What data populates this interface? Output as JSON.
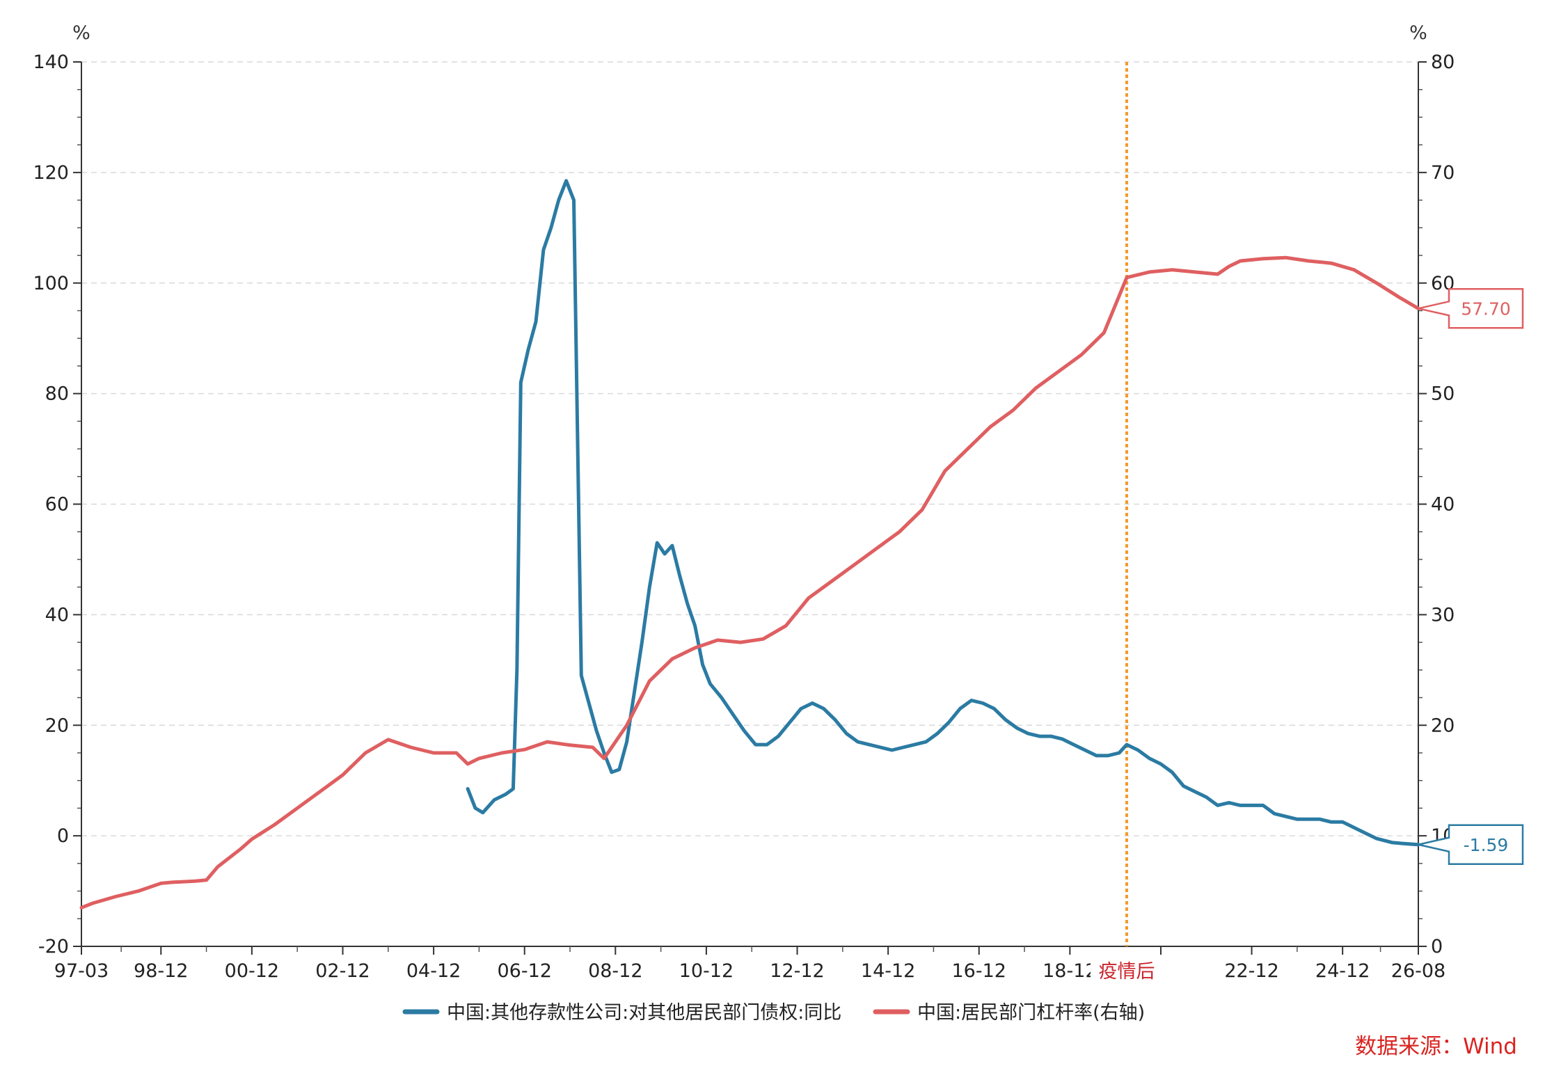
{
  "chart_data": {
    "type": "line",
    "left_unit": "%",
    "right_unit": "%",
    "left_axis": {
      "min": -20,
      "max": 140,
      "ticks": [
        -20,
        0,
        20,
        40,
        60,
        80,
        100,
        120,
        140
      ]
    },
    "right_axis": {
      "min": 0,
      "max": 80,
      "ticks": [
        0,
        10,
        20,
        30,
        40,
        50,
        60,
        70,
        80
      ]
    },
    "x_axis": {
      "start": "1997-03",
      "end": "2026-08",
      "labels": [
        {
          "date": "1997-03",
          "text": "97-03"
        },
        {
          "date": "1998-12",
          "text": "98-12"
        },
        {
          "date": "2000-12",
          "text": "00-12"
        },
        {
          "date": "2002-12",
          "text": "02-12"
        },
        {
          "date": "2004-12",
          "text": "04-12"
        },
        {
          "date": "2006-12",
          "text": "06-12"
        },
        {
          "date": "2008-12",
          "text": "08-12"
        },
        {
          "date": "2010-12",
          "text": "10-12"
        },
        {
          "date": "2012-12",
          "text": "12-12"
        },
        {
          "date": "2014-12",
          "text": "14-12"
        },
        {
          "date": "2016-12",
          "text": "16-12"
        },
        {
          "date": "2018-12",
          "text": "18-12"
        },
        {
          "date": "2022-12",
          "text": "22-12"
        },
        {
          "date": "2024-12",
          "text": "24-12"
        },
        {
          "date": "2026-08",
          "text": "26-08"
        }
      ]
    },
    "grid": "horizontal-dashed",
    "legend_position": "bottom",
    "marker": {
      "date": "2020-03",
      "label": "疫情后",
      "color": "#f39a2d"
    },
    "series": [
      {
        "name": "中国:其他存款性公司:对其他居民部门债权:同比",
        "axis": "left",
        "color": "#2b7ba3",
        "end_label": "-1.59",
        "points": [
          [
            "2005-09",
            8.5
          ],
          [
            "2005-11",
            5.0
          ],
          [
            "2006-01",
            4.2
          ],
          [
            "2006-04",
            6.5
          ],
          [
            "2006-07",
            7.5
          ],
          [
            "2006-09",
            8.5
          ],
          [
            "2006-10",
            30
          ],
          [
            "2006-11",
            82
          ],
          [
            "2007-01",
            88
          ],
          [
            "2007-03",
            93
          ],
          [
            "2007-05",
            106
          ],
          [
            "2007-07",
            110
          ],
          [
            "2007-09",
            115
          ],
          [
            "2007-11",
            118.5
          ],
          [
            "2008-01",
            115
          ],
          [
            "2008-03",
            29
          ],
          [
            "2008-05",
            24
          ],
          [
            "2008-07",
            19
          ],
          [
            "2008-09",
            15
          ],
          [
            "2008-11",
            11.5
          ],
          [
            "2009-01",
            12
          ],
          [
            "2009-03",
            17
          ],
          [
            "2009-05",
            26
          ],
          [
            "2009-07",
            35
          ],
          [
            "2009-09",
            45
          ],
          [
            "2009-11",
            53
          ],
          [
            "2010-01",
            51
          ],
          [
            "2010-03",
            52.5
          ],
          [
            "2010-05",
            47
          ],
          [
            "2010-07",
            42
          ],
          [
            "2010-09",
            38
          ],
          [
            "2010-11",
            31
          ],
          [
            "2011-01",
            27.5
          ],
          [
            "2011-04",
            25
          ],
          [
            "2011-07",
            22
          ],
          [
            "2011-10",
            19
          ],
          [
            "2012-01",
            16.5
          ],
          [
            "2012-04",
            16.5
          ],
          [
            "2012-07",
            18
          ],
          [
            "2012-10",
            20.5
          ],
          [
            "2013-01",
            23
          ],
          [
            "2013-04",
            24
          ],
          [
            "2013-07",
            23
          ],
          [
            "2013-10",
            21
          ],
          [
            "2014-01",
            18.5
          ],
          [
            "2014-04",
            17
          ],
          [
            "2014-07",
            16.5
          ],
          [
            "2014-10",
            16
          ],
          [
            "2015-01",
            15.5
          ],
          [
            "2015-04",
            16
          ],
          [
            "2015-07",
            16.5
          ],
          [
            "2015-10",
            17
          ],
          [
            "2016-01",
            18.5
          ],
          [
            "2016-04",
            20.5
          ],
          [
            "2016-07",
            23
          ],
          [
            "2016-10",
            24.5
          ],
          [
            "2017-01",
            24
          ],
          [
            "2017-04",
            23
          ],
          [
            "2017-07",
            21
          ],
          [
            "2017-10",
            19.5
          ],
          [
            "2018-01",
            18.5
          ],
          [
            "2018-04",
            18
          ],
          [
            "2018-07",
            18
          ],
          [
            "2018-10",
            17.5
          ],
          [
            "2019-01",
            16.5
          ],
          [
            "2019-04",
            15.5
          ],
          [
            "2019-07",
            14.5
          ],
          [
            "2019-10",
            14.5
          ],
          [
            "2020-01",
            15
          ],
          [
            "2020-03",
            16.5
          ],
          [
            "2020-06",
            15.5
          ],
          [
            "2020-09",
            14
          ],
          [
            "2020-12",
            13
          ],
          [
            "2021-03",
            11.5
          ],
          [
            "2021-06",
            9
          ],
          [
            "2021-09",
            8
          ],
          [
            "2021-12",
            7
          ],
          [
            "2022-03",
            5.5
          ],
          [
            "2022-06",
            6
          ],
          [
            "2022-09",
            5.5
          ],
          [
            "2022-12",
            5.5
          ],
          [
            "2023-03",
            5.5
          ],
          [
            "2023-06",
            4
          ],
          [
            "2023-09",
            3.5
          ],
          [
            "2023-12",
            3
          ],
          [
            "2024-03",
            3
          ],
          [
            "2024-06",
            3
          ],
          [
            "2024-09",
            2.5
          ],
          [
            "2024-12",
            2.5
          ],
          [
            "2025-03",
            1.5
          ],
          [
            "2025-06",
            0.5
          ],
          [
            "2025-09",
            -0.5
          ],
          [
            "2026-01",
            -1.2
          ],
          [
            "2026-04",
            -1.4
          ],
          [
            "2026-08",
            -1.59
          ]
        ]
      },
      {
        "name": "中国:居民部门杠杆率(右轴)",
        "axis": "right",
        "color": "#df5f61",
        "end_label": "57.70",
        "points": [
          [
            "1997-03",
            3.5
          ],
          [
            "1997-06",
            3.9
          ],
          [
            "1997-12",
            4.5
          ],
          [
            "1998-06",
            5.0
          ],
          [
            "1998-12",
            5.7
          ],
          [
            "1999-03",
            5.8
          ],
          [
            "1999-09",
            5.9
          ],
          [
            "1999-12",
            6.0
          ],
          [
            "2000-03",
            7.2
          ],
          [
            "2000-09",
            8.8
          ],
          [
            "2000-12",
            9.7
          ],
          [
            "2001-06",
            11.0
          ],
          [
            "2001-12",
            12.5
          ],
          [
            "2002-06",
            14.0
          ],
          [
            "2002-12",
            15.5
          ],
          [
            "2003-06",
            17.5
          ],
          [
            "2003-12",
            18.7
          ],
          [
            "2004-06",
            18.0
          ],
          [
            "2004-12",
            17.5
          ],
          [
            "2005-06",
            17.5
          ],
          [
            "2005-09",
            16.5
          ],
          [
            "2005-12",
            17.0
          ],
          [
            "2006-06",
            17.5
          ],
          [
            "2006-12",
            17.8
          ],
          [
            "2007-06",
            18.5
          ],
          [
            "2007-12",
            18.2
          ],
          [
            "2008-06",
            18.0
          ],
          [
            "2008-09",
            17.0
          ],
          [
            "2009-03",
            20.0
          ],
          [
            "2009-09",
            24.0
          ],
          [
            "2010-03",
            26.0
          ],
          [
            "2010-09",
            27.0
          ],
          [
            "2011-03",
            27.7
          ],
          [
            "2011-09",
            27.5
          ],
          [
            "2012-03",
            27.8
          ],
          [
            "2012-09",
            29.0
          ],
          [
            "2013-03",
            31.5
          ],
          [
            "2013-09",
            33.0
          ],
          [
            "2014-03",
            34.5
          ],
          [
            "2014-09",
            36.0
          ],
          [
            "2015-03",
            37.5
          ],
          [
            "2015-09",
            39.5
          ],
          [
            "2016-03",
            43.0
          ],
          [
            "2016-09",
            45.0
          ],
          [
            "2017-03",
            47.0
          ],
          [
            "2017-09",
            48.5
          ],
          [
            "2018-03",
            50.5
          ],
          [
            "2018-09",
            52.0
          ],
          [
            "2019-03",
            53.5
          ],
          [
            "2019-09",
            55.5
          ],
          [
            "2020-03",
            60.5
          ],
          [
            "2020-09",
            61.0
          ],
          [
            "2021-03",
            61.2
          ],
          [
            "2021-09",
            61.0
          ],
          [
            "2022-03",
            60.8
          ],
          [
            "2022-06",
            61.5
          ],
          [
            "2022-09",
            62.0
          ],
          [
            "2023-03",
            62.2
          ],
          [
            "2023-09",
            62.3
          ],
          [
            "2024-03",
            62.0
          ],
          [
            "2024-09",
            61.8
          ],
          [
            "2025-03",
            61.2
          ],
          [
            "2025-09",
            60.0
          ],
          [
            "2026-03",
            58.7
          ],
          [
            "2026-08",
            57.7
          ]
        ]
      }
    ]
  },
  "source": "数据来源：Wind"
}
